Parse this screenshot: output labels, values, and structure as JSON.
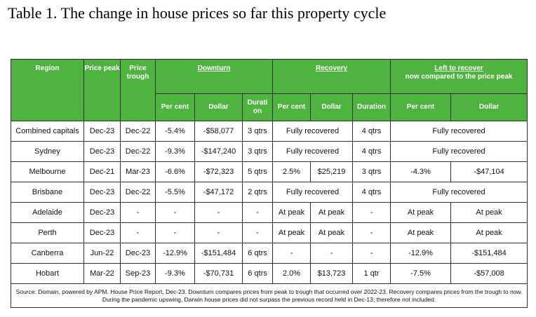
{
  "title": "Table 1. The change in house prices so far this property cycle",
  "header": {
    "region": "Region",
    "price_peak": "Price peak",
    "price_trough": "Price trough",
    "downturn": "Downturn",
    "recovery": "Recovery",
    "left_line1": "Left to recover",
    "left_line2": "now compared to the price peak",
    "sub": {
      "d_pct": "Per cent",
      "d_dollar": "Dollar",
      "d_dur": "Durati on",
      "r_pct": "Per cent",
      "r_dollar": "Dollar",
      "r_dur": "Duration",
      "l_pct": "Per cent",
      "l_dollar": "Dollar"
    }
  },
  "rows": [
    {
      "region": "Combined capitals",
      "peak": "Dec-23",
      "trough": "Dec-22",
      "d_pct": "-5.4%",
      "d_dollar": "-$58,077",
      "d_dur": "3 qtrs",
      "r_merged": "Fully recovered",
      "r_dur": "4 qtrs",
      "l_merged": "Fully recovered"
    },
    {
      "region": "Sydney",
      "peak": "Dec-23",
      "trough": "Dec-22",
      "d_pct": "-9.3%",
      "d_dollar": "-$147,240",
      "d_dur": "3 qtrs",
      "r_merged": "Fully recovered",
      "r_dur": "4 qtrs",
      "l_merged": "Fully recovered"
    },
    {
      "region": "Melbourne",
      "peak": "Dec-21",
      "trough": "Mar-23",
      "d_pct": "-6.6%",
      "d_dollar": "-$72,323",
      "d_dur": "5 qtrs",
      "r_pct": "2.5%",
      "r_dollar": "$25,219",
      "r_dur": "3 qtrs",
      "l_pct": "-4.3%",
      "l_dollar": "-$47,104"
    },
    {
      "region": "Brisbane",
      "peak": "Dec-23",
      "trough": "Dec-22",
      "d_pct": "-5.5%",
      "d_dollar": "-$47,172",
      "d_dur": "2 qtrs",
      "r_merged": "Fully recovered",
      "r_dur": "4 qtrs",
      "l_merged": "Fully recovered"
    },
    {
      "region": "Adelaide",
      "peak": "Dec-23",
      "trough": "-",
      "d_pct": "-",
      "d_dollar": "-",
      "d_dur": "-",
      "r_pct": "At peak",
      "r_dollar": "At peak",
      "r_dur": "-",
      "l_pct": "At peak",
      "l_dollar": "At peak"
    },
    {
      "region": "Perth",
      "peak": "Dec-23",
      "trough": "-",
      "d_pct": "-",
      "d_dollar": "-",
      "d_dur": "-",
      "r_pct": "At peak",
      "r_dollar": "At peak",
      "r_dur": "-",
      "l_pct": "At peak",
      "l_dollar": "At peak"
    },
    {
      "region": "Canberra",
      "peak": "Jun-22",
      "trough": "Dec-23",
      "d_pct": "-12.9%",
      "d_dollar": "-$151,484",
      "d_dur": "6 qtrs",
      "r_pct": "-",
      "r_dollar": "-",
      "r_dur": "-",
      "l_pct": "-12.9%",
      "l_dollar": "-$151,484"
    },
    {
      "region": "Hobart",
      "peak": "Mar-22",
      "trough": "Sep-23",
      "d_pct": "-9.3%",
      "d_dollar": "-$70,731",
      "d_dur": "6 qtrs",
      "r_pct": "2.0%",
      "r_dollar": "$13,723",
      "r_dur": "1 qtr",
      "l_pct": "-7.5%",
      "l_dollar": "-$57,008"
    }
  ],
  "source": "Source: Domain, powered by APM. House Price Report, Dec-23. Downturn compares prices from peak to trough that occurred over 2022-23. Recovery compares prices from the trough to now. During the pandemic upswing, Darwin house prices did not surpass the previous record held in Dec-13; therefore not included."
}
